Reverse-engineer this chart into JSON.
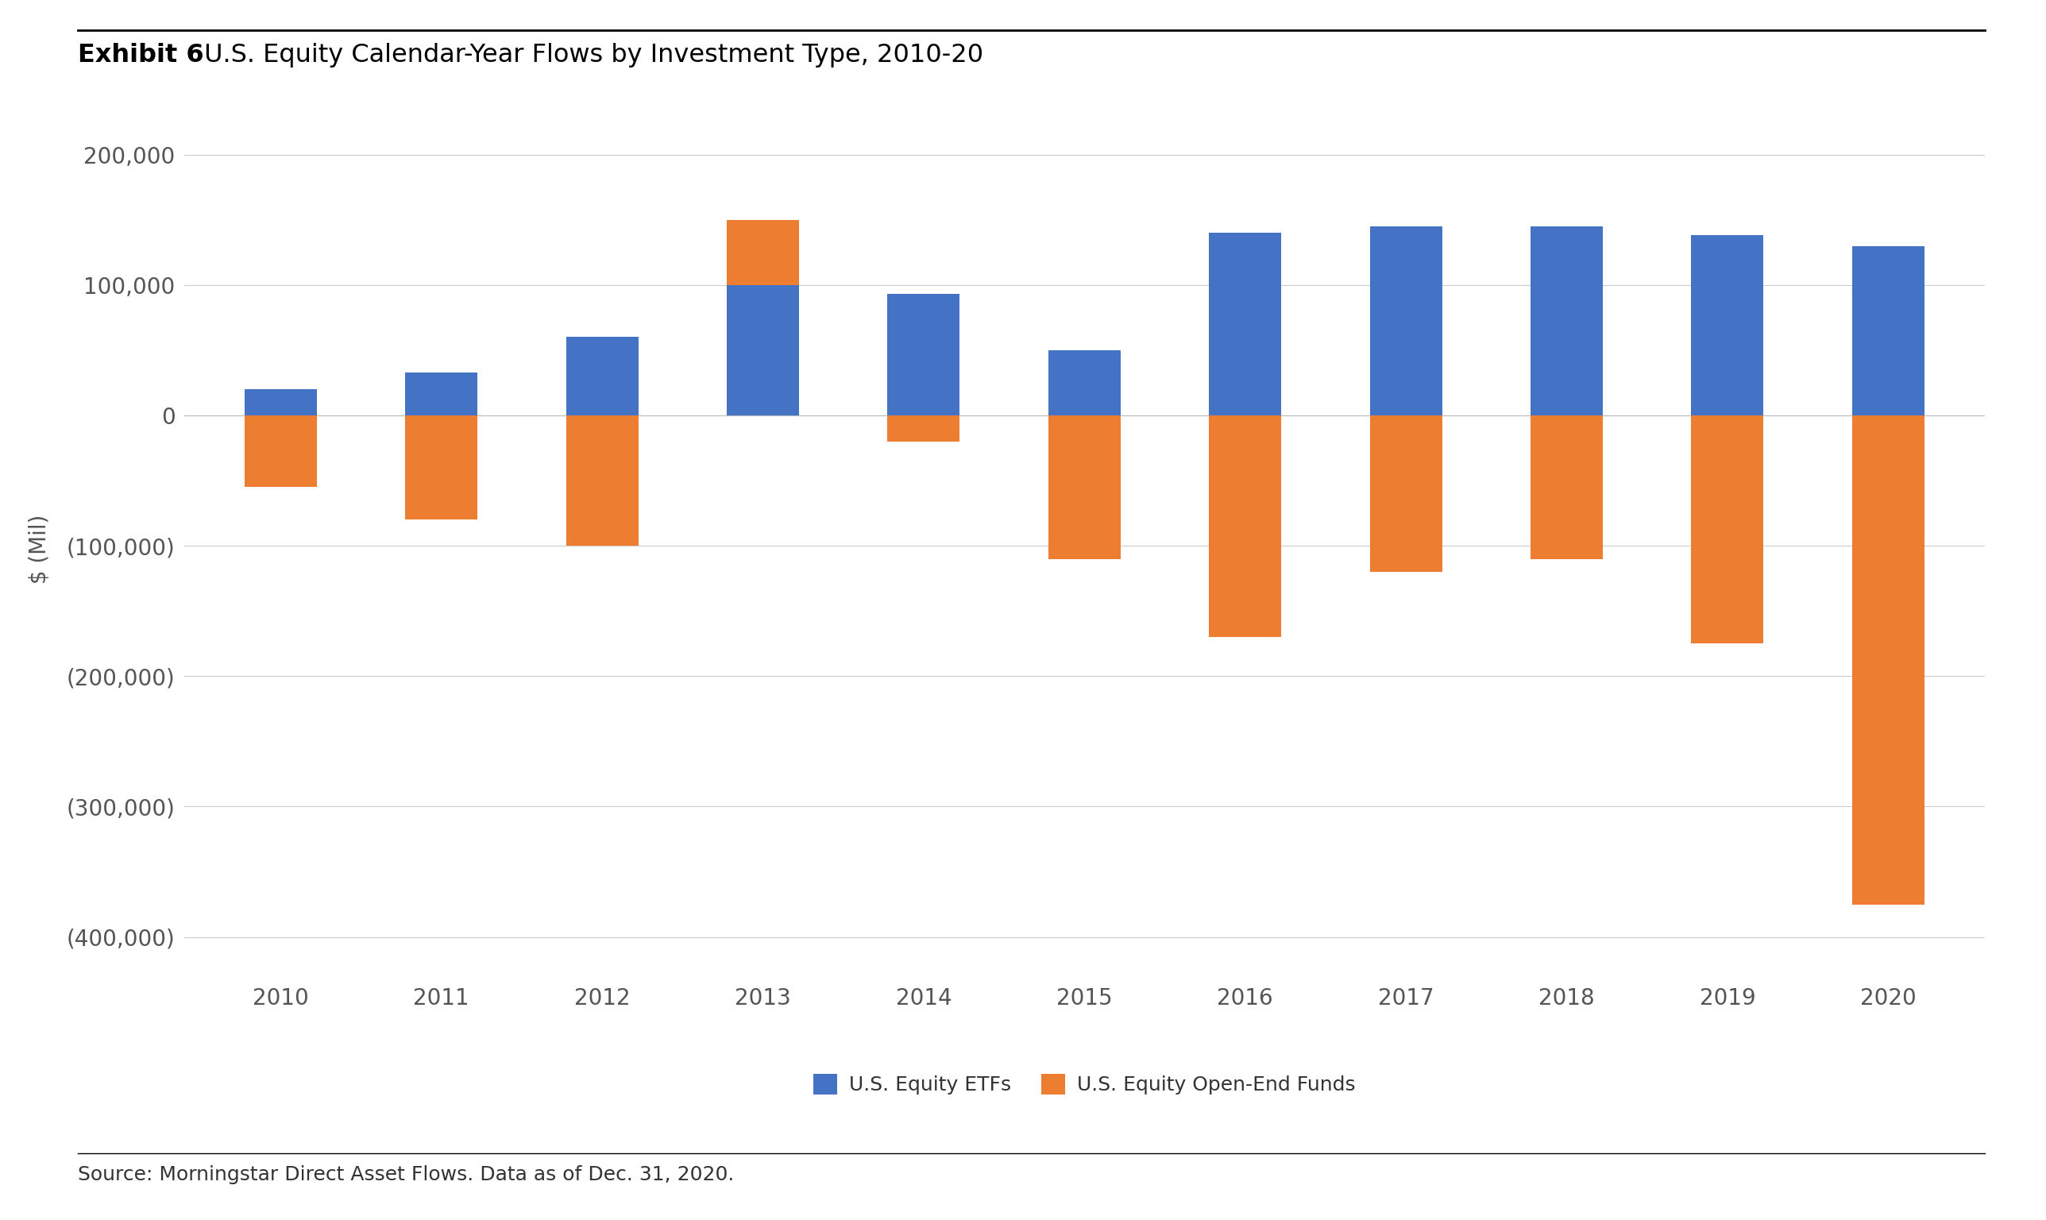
{
  "years": [
    2010,
    2011,
    2012,
    2013,
    2014,
    2015,
    2016,
    2017,
    2018,
    2019,
    2020
  ],
  "etf_values": [
    20000,
    33000,
    60000,
    100000,
    93000,
    50000,
    140000,
    145000,
    145000,
    138000,
    130000
  ],
  "oe_values": [
    -55000,
    -80000,
    -100000,
    50000,
    -20000,
    -110000,
    -170000,
    -120000,
    -110000,
    -175000,
    -375000
  ],
  "etf_color": "#4472C4",
  "oe_color": "#ED7D31",
  "title_bold": "Exhibit 6",
  "title_regular": " U.S. Equity Calendar-Year Flows by Investment Type, 2010-20",
  "ylabel": "$ (Mil)",
  "ylim_min": -430000,
  "ylim_max": 225000,
  "yticks": [
    200000,
    100000,
    0,
    -100000,
    -200000,
    -300000,
    -400000
  ],
  "legend_etf": "U.S. Equity ETFs",
  "legend_oe": "U.S. Equity Open-End Funds",
  "source_text": "Source: Morningstar Direct Asset Flows. Data as of Dec. 31, 2020.",
  "background_color": "#FFFFFF",
  "grid_color": "#CCCCCC",
  "bar_width": 0.45
}
